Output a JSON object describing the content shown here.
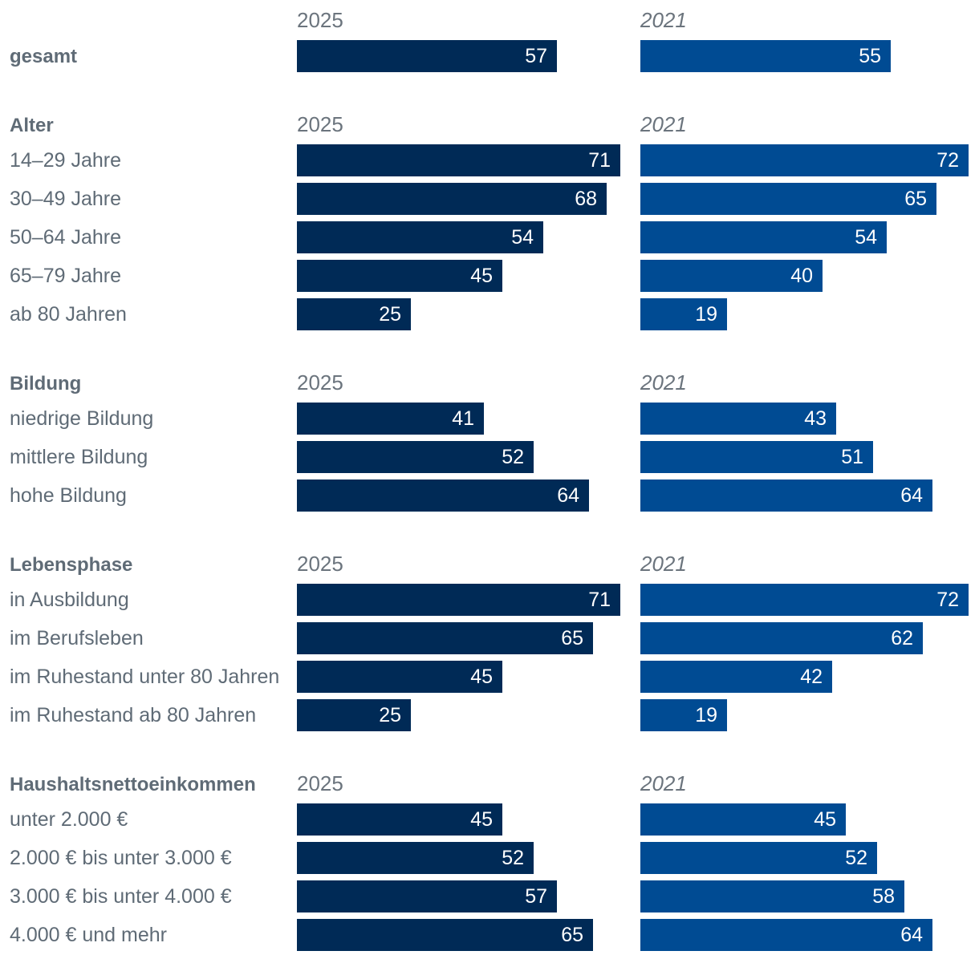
{
  "chart_data": {
    "type": "bar",
    "orientation": "horizontal",
    "panels": [
      {
        "label": "2025",
        "italic": false,
        "color": "#002a56"
      },
      {
        "label": "2021",
        "italic": true,
        "color": "#004b93"
      }
    ],
    "groups": [
      {
        "heading": "gesamt",
        "heading_is_row": true,
        "rows": [
          {
            "label": "gesamt",
            "values": [
              57,
              55
            ]
          }
        ]
      },
      {
        "heading": "Alter",
        "heading_is_row": false,
        "rows": [
          {
            "label": "14–29 Jahre",
            "values": [
              71,
              72
            ]
          },
          {
            "label": "30–49 Jahre",
            "values": [
              68,
              65
            ]
          },
          {
            "label": "50–64 Jahre",
            "values": [
              54,
              54
            ]
          },
          {
            "label": "65–79 Jahre",
            "values": [
              45,
              40
            ]
          },
          {
            "label": "ab 80 Jahren",
            "values": [
              25,
              19
            ]
          }
        ]
      },
      {
        "heading": "Bildung",
        "heading_is_row": false,
        "rows": [
          {
            "label": "niedrige Bildung",
            "values": [
              41,
              43
            ]
          },
          {
            "label": "mittlere Bildung",
            "values": [
              52,
              51
            ]
          },
          {
            "label": "hohe Bildung",
            "values": [
              64,
              64
            ]
          }
        ]
      },
      {
        "heading": "Lebensphase",
        "heading_is_row": false,
        "rows": [
          {
            "label": "in Ausbildung",
            "values": [
              71,
              72
            ]
          },
          {
            "label": "im Berufsleben",
            "values": [
              65,
              62
            ]
          },
          {
            "label": "im Ruhestand unter 80 Jahren",
            "values": [
              45,
              42
            ]
          },
          {
            "label": "im Ruhestand ab 80 Jahren",
            "values": [
              25,
              19
            ]
          }
        ]
      },
      {
        "heading": "Haushaltsnettoeinkommen",
        "heading_is_row": false,
        "rows": [
          {
            "label": "unter 2.000 €",
            "values": [
              45,
              45
            ]
          },
          {
            "label": "2.000 € bis unter 3.000 €",
            "values": [
              52,
              52
            ]
          },
          {
            "label": "3.000 € bis unter 4.000 €",
            "values": [
              57,
              58
            ]
          },
          {
            "label": "4.000 € und mehr",
            "values": [
              65,
              64
            ]
          }
        ]
      }
    ],
    "xlim": [
      0,
      72
    ]
  }
}
